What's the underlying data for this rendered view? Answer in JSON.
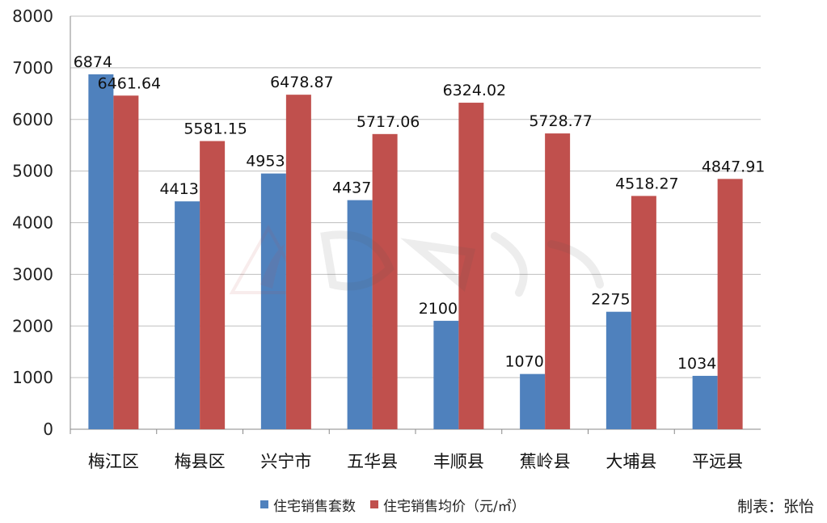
{
  "chart_data": {
    "type": "bar",
    "categories": [
      "梅江区",
      "梅县区",
      "兴宁市",
      "五华县",
      "丰顺县",
      "蕉岭县",
      "大埔县",
      "平远县"
    ],
    "series": [
      {
        "name": "住宅销售套数",
        "values": [
          6874,
          4413,
          4953,
          4437,
          2100,
          1070,
          2275,
          1034
        ],
        "color": "#4f81bd",
        "labels": [
          "6874",
          "4413",
          "4953",
          "4437",
          "2100",
          "1070",
          "2275",
          "1034"
        ]
      },
      {
        "name": "住宅销售均价（元/㎡）",
        "values": [
          6461.64,
          5581.15,
          6478.87,
          5717.06,
          6324.02,
          5728.77,
          4518.27,
          4847.91
        ],
        "color": "#c0504d",
        "labels": [
          "6461.64",
          "5581.15",
          "6478.87",
          "5717.06",
          "6324.02",
          "5728.77",
          "4518.27",
          "4847.91"
        ]
      }
    ],
    "ylim": [
      0,
      8000
    ],
    "yticks": [
      0,
      1000,
      2000,
      3000,
      4000,
      5000,
      6000,
      7000,
      8000
    ],
    "ytick_labels": [
      "0",
      "1000",
      "2000",
      "3000",
      "4000",
      "5000",
      "6000",
      "7000",
      "8000"
    ],
    "grid": true,
    "legend_position": "bottom"
  },
  "credit": "制表：张怡"
}
